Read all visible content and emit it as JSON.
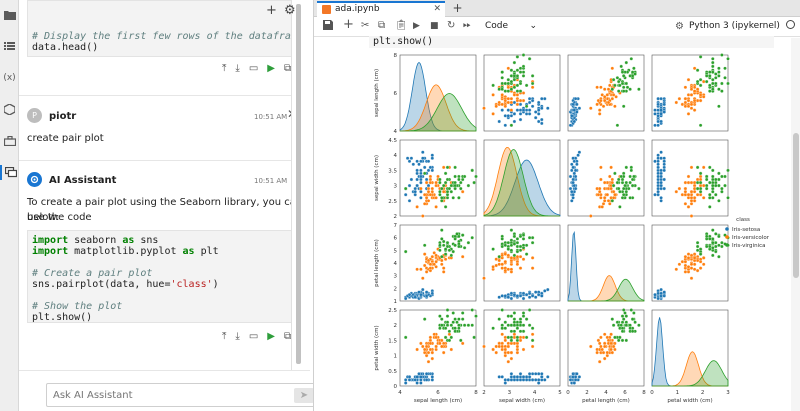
{
  "chat": {
    "top_code_comment": "# Display the first few rows of the dataframe",
    "top_code_line": "data.head()",
    "user": {
      "initial": "P",
      "name": "piotr",
      "time": "10:51 AM",
      "text": "create pair plot"
    },
    "assistant": {
      "name": "AI Assistant",
      "time": "10:51 AM",
      "text1": "To create a pair plot using the Seaborn library, you can use the code",
      "text2": "below:",
      "code": [
        [
          {
            "t": "import",
            "c": "c-kw"
          },
          {
            "t": " seaborn "
          },
          {
            "t": "as",
            "c": "c-kw"
          },
          {
            "t": " sns"
          }
        ],
        [
          {
            "t": "import",
            "c": "c-kw"
          },
          {
            "t": " matplotlib.pyplot "
          },
          {
            "t": "as",
            "c": "c-kw"
          },
          {
            "t": " plt"
          }
        ],
        [
          {
            "t": ""
          }
        ],
        [
          {
            "t": "# Create a pair plot",
            "c": "c-com"
          }
        ],
        [
          {
            "t": "sns.pairplot(data, hue="
          },
          {
            "t": "'class'",
            "c": "c-str"
          },
          {
            "t": ")"
          }
        ],
        [
          {
            "t": ""
          }
        ],
        [
          {
            "t": "# Show the plot",
            "c": "c-com"
          }
        ],
        [
          {
            "t": "plt.show()"
          }
        ]
      ]
    },
    "input_placeholder": "Ask AI Assistant"
  },
  "notebook": {
    "tab_title": "ada.ipynb",
    "cell_type": "Code",
    "kernel_name": "Python 3 (ipykernel)",
    "code_tail": "plt.show()"
  },
  "chart_data": {
    "type": "scatter",
    "kind": "pairplot",
    "variables": [
      "sepal length (cm)",
      "sepal width (cm)",
      "petal length (cm)",
      "petal width (cm)"
    ],
    "ranges": [
      [
        4,
        8
      ],
      [
        2.0,
        4.5
      ],
      [
        1,
        7
      ],
      [
        0.0,
        2.5
      ]
    ],
    "ticks": [
      [
        4,
        6,
        8
      ],
      [
        2.0,
        2.5,
        3.0,
        3.5,
        4.0,
        4.5
      ],
      [
        1,
        2,
        3,
        4,
        5,
        6,
        7
      ],
      [
        0.0,
        0.5,
        1.0,
        1.5,
        2.0,
        2.5
      ]
    ],
    "bottom_ticks": [
      [
        4,
        6,
        8
      ],
      [
        2,
        3,
        4,
        5
      ],
      [
        0,
        2,
        4,
        6,
        8
      ],
      [
        0,
        1,
        2,
        3
      ]
    ],
    "legend": {
      "title": "class",
      "position": "right"
    },
    "series": [
      {
        "name": "Iris-setosa",
        "color": "#1f77b4",
        "mean": [
          5.0,
          3.4,
          1.46,
          0.25
        ],
        "sd": [
          0.35,
          0.38,
          0.17,
          0.1
        ]
      },
      {
        "name": "Iris-versicolor",
        "color": "#ff7f0e",
        "mean": [
          5.9,
          2.77,
          4.26,
          1.33
        ],
        "sd": [
          0.52,
          0.31,
          0.47,
          0.2
        ]
      },
      {
        "name": "Iris-virginica",
        "color": "#2ca02c",
        "mean": [
          6.6,
          2.97,
          5.55,
          2.03
        ],
        "sd": [
          0.64,
          0.32,
          0.55,
          0.27
        ]
      }
    ],
    "points_per_class": 50
  }
}
